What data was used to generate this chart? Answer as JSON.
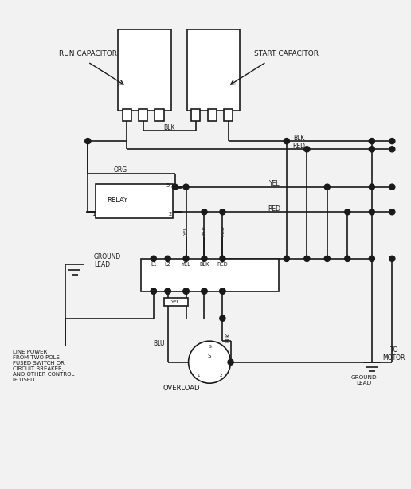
{
  "bg_color": "#f2f2f2",
  "line_color": "#1a1a1a",
  "text_color": "#1a1a1a",
  "run_cap_label": "RUN CAPACITOR",
  "start_cap_label": "START CAPACITOR",
  "relay_label": "RELAY",
  "overload_label": "OVERLOAD",
  "ground_lead_label1": "GROUND\nLEAD",
  "ground_lead_label2": "GROUND\nLEAD",
  "to_motor_label": "TO\nMOTOR",
  "line_power_label": "LINE POWER\nFROM TWO POLE\nFUSED SWITCH OR\nCIRCUIT BREAKER,\nAND OTHER CONTROL\nIF USED.",
  "blk_label": "BLK",
  "red_label": "RED",
  "org_label": "ORG",
  "yel_label": "YEL",
  "blu_label": "BLU"
}
